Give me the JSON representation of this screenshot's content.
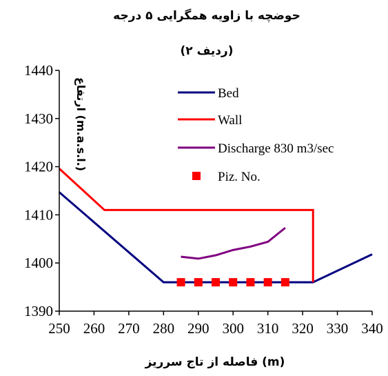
{
  "chart_data": {
    "type": "line",
    "title": "حوضچه با زاویه همگرایی ۵ درجه",
    "subtitle": "(ردیف ۲)",
    "xlabel": "فاصله از تاج سرریز (m)",
    "ylabel": "ارتفاع (m.a.s.l.)",
    "xlim": [
      250,
      340
    ],
    "ylim": [
      1390,
      1440
    ],
    "x_ticks": [
      "250",
      "260",
      "270",
      "280",
      "290",
      "300",
      "310",
      "320",
      "330",
      "340"
    ],
    "y_ticks": [
      "1390",
      "1400",
      "1410",
      "1420",
      "1430",
      "1440"
    ],
    "legend_position": "top-right",
    "series": [
      {
        "name": "Bed",
        "kind": "line",
        "color": "#000080",
        "x": [
          250,
          280,
          323,
          340
        ],
        "y": [
          1414.7,
          1396,
          1396,
          1401.8
        ]
      },
      {
        "name": "Wall",
        "kind": "line",
        "color": "#ff0000",
        "x": [
          250,
          263,
          323,
          323
        ],
        "y": [
          1419.6,
          1411,
          1411,
          1396
        ]
      },
      {
        "name": "Discharge 830 m3/sec",
        "kind": "line",
        "color": "#800080",
        "x": [
          285,
          290,
          295,
          300,
          305,
          310,
          315
        ],
        "y": [
          1401.3,
          1400.9,
          1401.6,
          1402.7,
          1403.4,
          1404.4,
          1407.3
        ]
      },
      {
        "name": "Piz. No.",
        "kind": "marker",
        "color": "#ff0000",
        "x": [
          285,
          290,
          295,
          300,
          305,
          310,
          315
        ],
        "y": [
          1396,
          1396,
          1396,
          1396,
          1396,
          1396,
          1396
        ]
      }
    ]
  }
}
